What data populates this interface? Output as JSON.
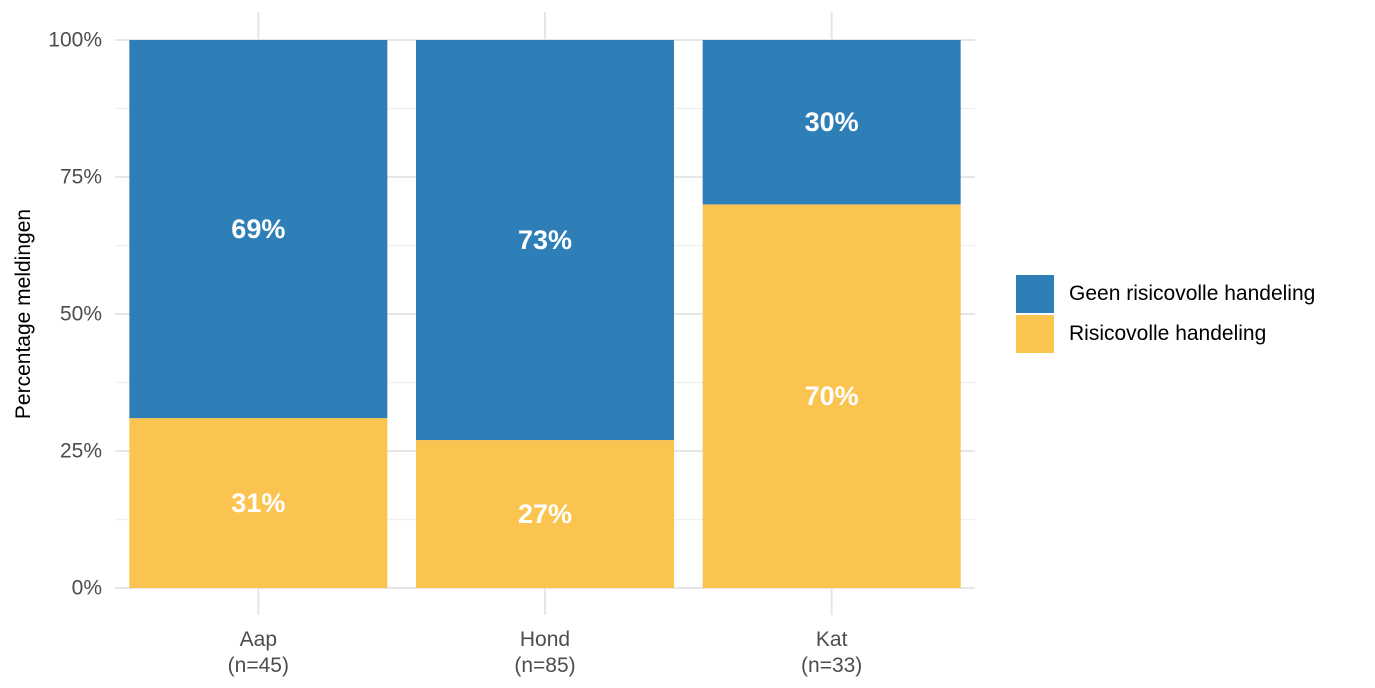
{
  "chart_data": {
    "type": "bar",
    "stacked": true,
    "percent": true,
    "title": "",
    "xlabel": "",
    "ylabel": "Percentage meldingen",
    "ylim": [
      0,
      100
    ],
    "yticks": [
      0,
      25,
      50,
      75,
      100
    ],
    "ytick_labels": [
      "0%",
      "25%",
      "50%",
      "75%",
      "100%"
    ],
    "categories": [
      {
        "name": "Aap",
        "n_label": "(n=45)"
      },
      {
        "name": "Hond",
        "n_label": "(n=85)"
      },
      {
        "name": "Kat",
        "n_label": "(n=33)"
      }
    ],
    "series": [
      {
        "name": "Risicovolle handeling",
        "color": "#FBC350",
        "values": [
          31,
          27,
          70
        ],
        "labels": [
          "31%",
          "27%",
          "70%"
        ]
      },
      {
        "name": "Geen risicovolle handeling",
        "color": "#2E7EB8",
        "values": [
          69,
          73,
          30
        ],
        "labels": [
          "69%",
          "73%",
          "30%"
        ]
      }
    ],
    "legend_position": "right",
    "grid": true
  },
  "legend": {
    "items": [
      {
        "label": "Geen risicovolle handeling",
        "color": "#2E7EB8"
      },
      {
        "label": "Risicovolle handeling",
        "color": "#FBC350"
      }
    ]
  }
}
